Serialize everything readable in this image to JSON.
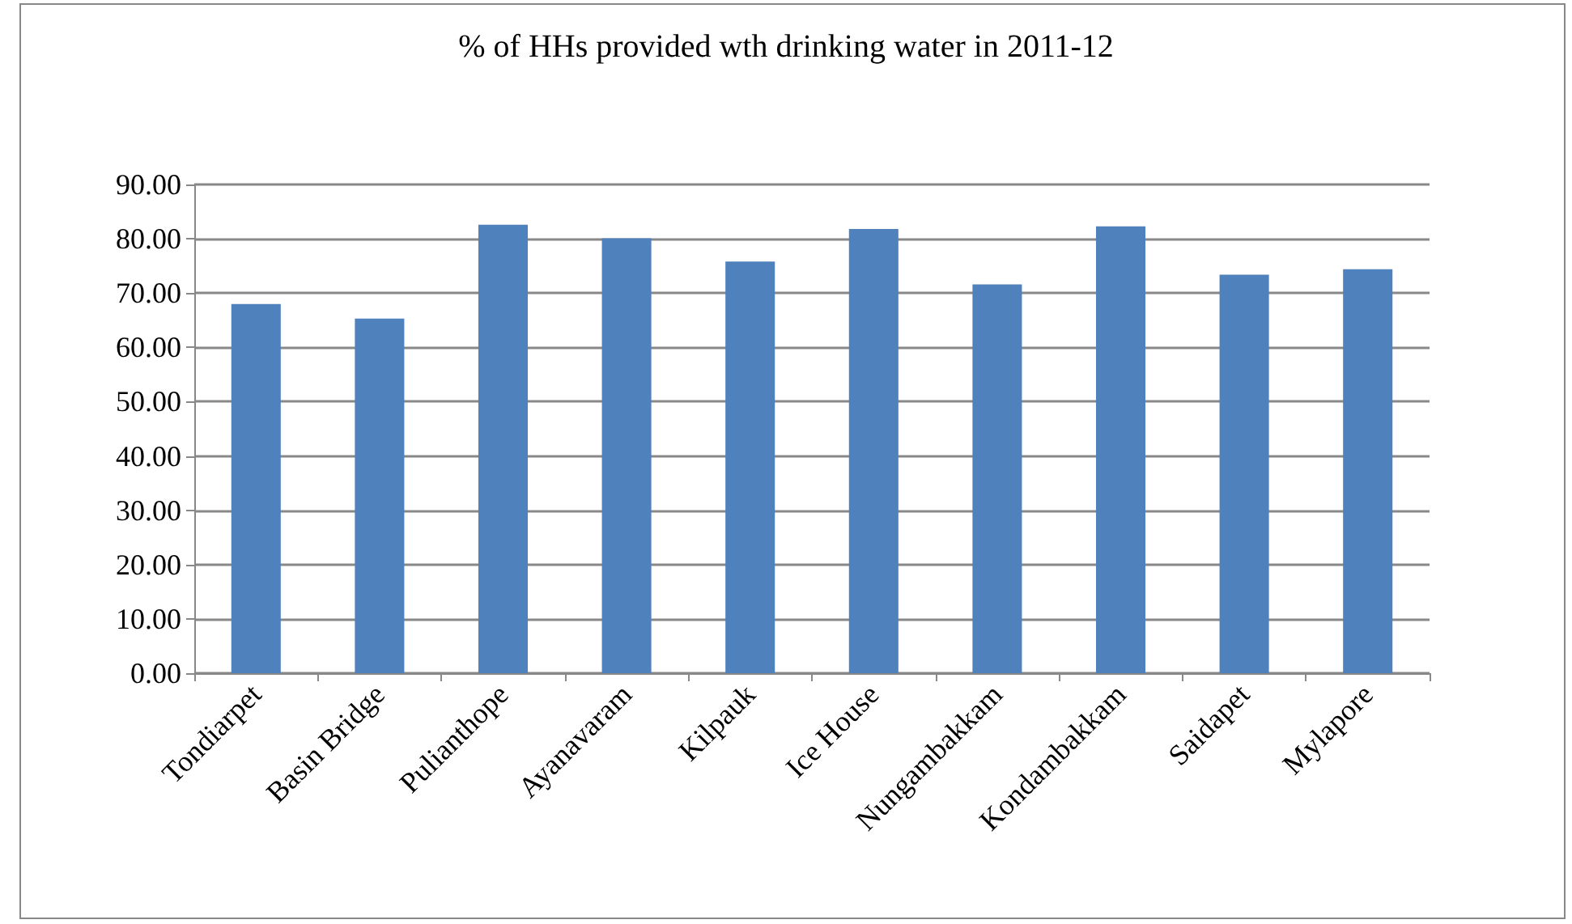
{
  "chart_data": {
    "type": "bar",
    "title": "% of HHs provided wth drinking water in 2011-12",
    "categories": [
      "Tondiarpet",
      "Basin Bridge",
      "Pulianthope",
      "Ayanavaram",
      "Kilpauk",
      "Ice House",
      "Nungambakkam",
      "Kondambakkam",
      "Saidapet",
      "Mylapore"
    ],
    "values": [
      68.0,
      65.3,
      82.6,
      80.1,
      75.8,
      81.8,
      71.6,
      82.3,
      73.4,
      74.4
    ],
    "color": "#4f81bd",
    "ylim": [
      0,
      90
    ],
    "yticks": [
      {
        "value": 0,
        "label": "0.00"
      },
      {
        "value": 10,
        "label": "10.00"
      },
      {
        "value": 20,
        "label": "20.00"
      },
      {
        "value": 30,
        "label": "30.00"
      },
      {
        "value": 40,
        "label": "40.00"
      },
      {
        "value": 50,
        "label": "50.00"
      },
      {
        "value": 60,
        "label": "60.00"
      },
      {
        "value": 70,
        "label": "70.00"
      },
      {
        "value": 80,
        "label": "80.00"
      },
      {
        "value": 90,
        "label": "90.00"
      }
    ],
    "grid": "y"
  }
}
